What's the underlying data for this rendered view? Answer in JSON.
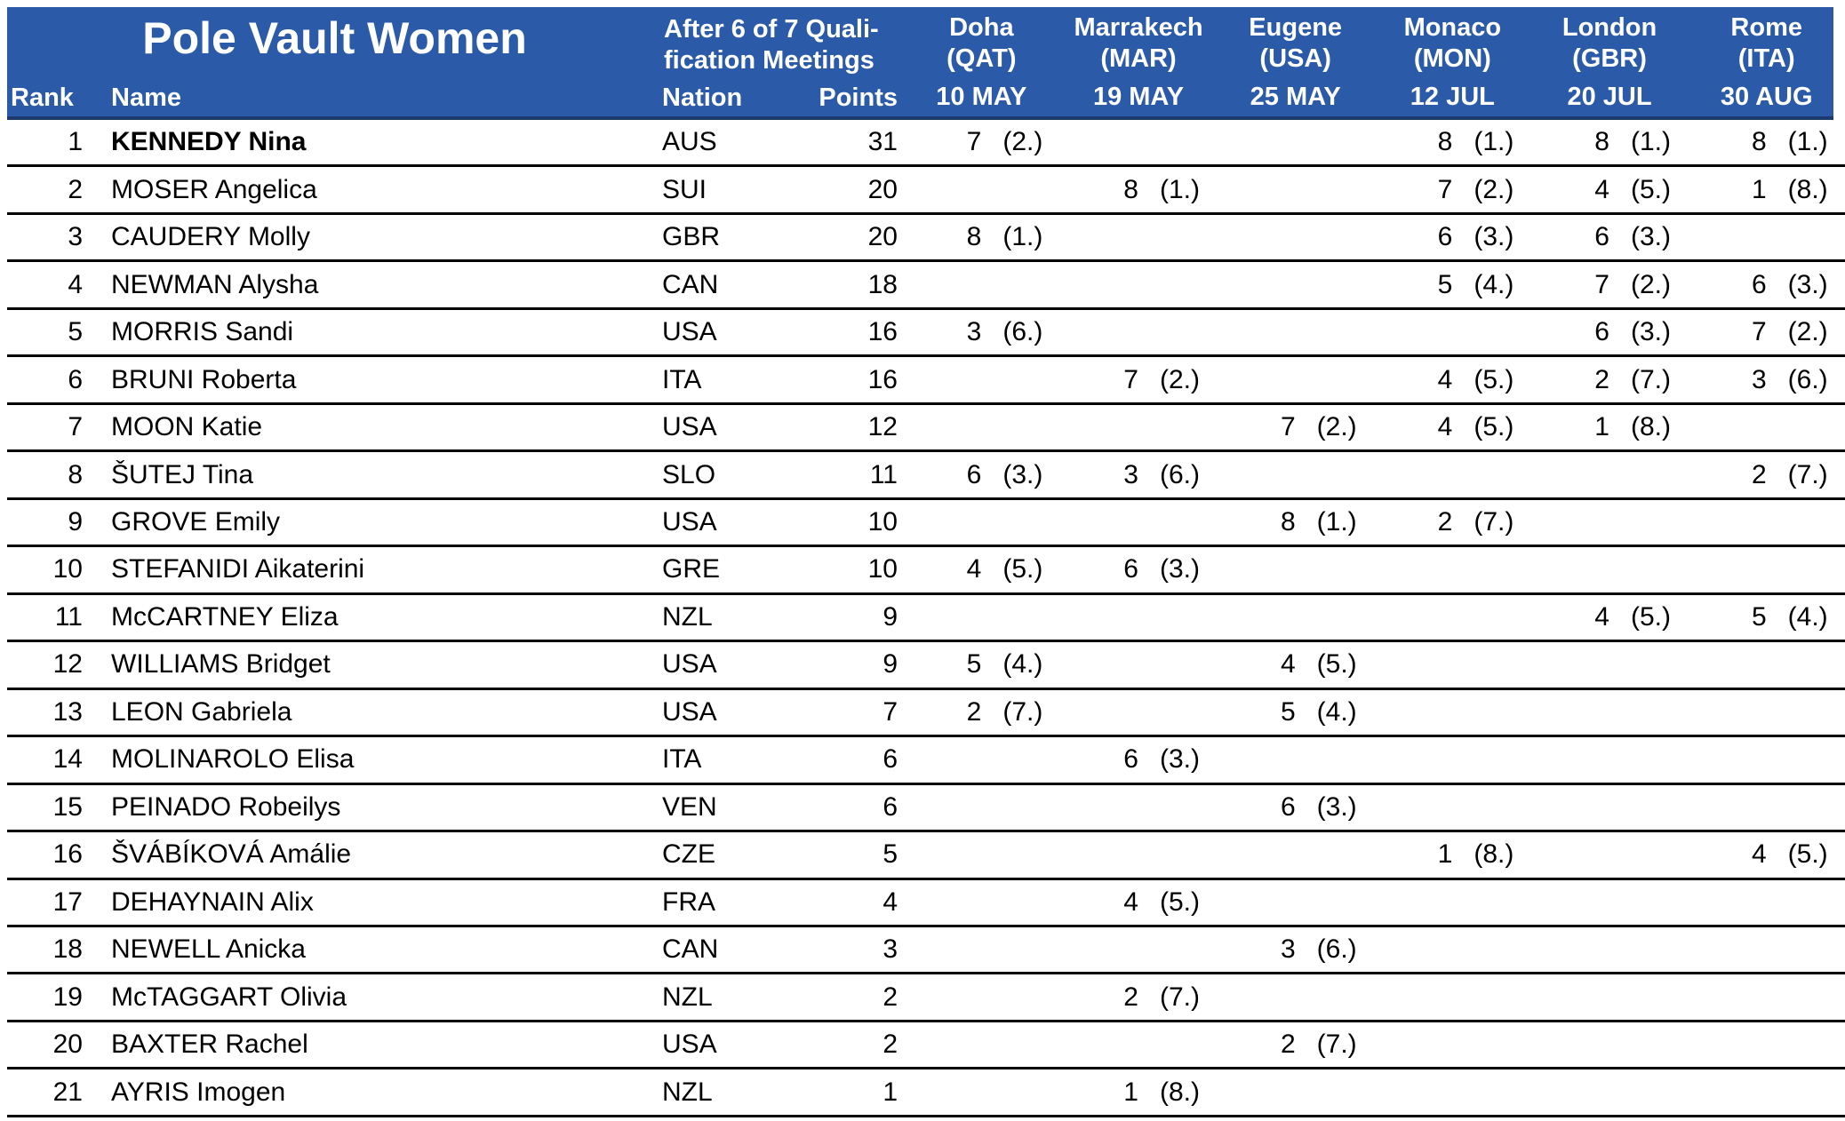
{
  "colors": {
    "header_bg": "#2B5AA8",
    "header_border": "#1C3A6E",
    "header_text": "#FFFFFF",
    "row_line": "#000000",
    "body_text": "#000000"
  },
  "header": {
    "title": "Pole Vault Women",
    "subtitle_line1": "After 6 of 7 Quali-",
    "subtitle_line2": "fication Meetings",
    "rank_label": "Rank",
    "name_label": "Name",
    "nation_label": "Nation",
    "points_label": "Points",
    "meetings": [
      {
        "city": "Doha",
        "country": "(QAT)",
        "date": "10 MAY"
      },
      {
        "city": "Marrakech",
        "country": "(MAR)",
        "date": "19 MAY"
      },
      {
        "city": "Eugene",
        "country": "(USA)",
        "date": "25 MAY"
      },
      {
        "city": "Monaco",
        "country": "(MON)",
        "date": "12 JUL"
      },
      {
        "city": "London",
        "country": "(GBR)",
        "date": "20 JUL"
      },
      {
        "city": "Rome",
        "country": "(ITA)",
        "date": "30 AUG"
      }
    ]
  },
  "rows": [
    {
      "rank": 1,
      "name": "KENNEDY Nina",
      "bold": true,
      "nation": "AUS",
      "points": 31,
      "results": [
        {
          "score": 7,
          "place": "(2.)"
        },
        null,
        null,
        {
          "score": 8,
          "place": "(1.)"
        },
        {
          "score": 8,
          "place": "(1.)"
        },
        {
          "score": 8,
          "place": "(1.)"
        }
      ]
    },
    {
      "rank": 2,
      "name": "MOSER Angelica",
      "bold": false,
      "nation": "SUI",
      "points": 20,
      "results": [
        null,
        {
          "score": 8,
          "place": "(1.)"
        },
        null,
        {
          "score": 7,
          "place": "(2.)"
        },
        {
          "score": 4,
          "place": "(5.)"
        },
        {
          "score": 1,
          "place": "(8.)"
        }
      ]
    },
    {
      "rank": 3,
      "name": "CAUDERY Molly",
      "bold": false,
      "nation": "GBR",
      "points": 20,
      "results": [
        {
          "score": 8,
          "place": "(1.)"
        },
        null,
        null,
        {
          "score": 6,
          "place": "(3.)"
        },
        {
          "score": 6,
          "place": "(3.)"
        },
        null
      ]
    },
    {
      "rank": 4,
      "name": "NEWMAN Alysha",
      "bold": false,
      "nation": "CAN",
      "points": 18,
      "results": [
        null,
        null,
        null,
        {
          "score": 5,
          "place": "(4.)"
        },
        {
          "score": 7,
          "place": "(2.)"
        },
        {
          "score": 6,
          "place": "(3.)"
        }
      ]
    },
    {
      "rank": 5,
      "name": "MORRIS Sandi",
      "bold": false,
      "nation": "USA",
      "points": 16,
      "results": [
        {
          "score": 3,
          "place": "(6.)"
        },
        null,
        null,
        null,
        {
          "score": 6,
          "place": "(3.)"
        },
        {
          "score": 7,
          "place": "(2.)"
        }
      ]
    },
    {
      "rank": 6,
      "name": "BRUNI Roberta",
      "bold": false,
      "nation": "ITA",
      "points": 16,
      "results": [
        null,
        {
          "score": 7,
          "place": "(2.)"
        },
        null,
        {
          "score": 4,
          "place": "(5.)"
        },
        {
          "score": 2,
          "place": "(7.)"
        },
        {
          "score": 3,
          "place": "(6.)"
        }
      ]
    },
    {
      "rank": 7,
      "name": "MOON Katie",
      "bold": false,
      "nation": "USA",
      "points": 12,
      "results": [
        null,
        null,
        {
          "score": 7,
          "place": "(2.)"
        },
        {
          "score": 4,
          "place": "(5.)"
        },
        {
          "score": 1,
          "place": "(8.)"
        },
        null
      ]
    },
    {
      "rank": 8,
      "name": "ŠUTEJ Tina",
      "bold": false,
      "nation": "SLO",
      "points": 11,
      "results": [
        {
          "score": 6,
          "place": "(3.)"
        },
        {
          "score": 3,
          "place": "(6.)"
        },
        null,
        null,
        null,
        {
          "score": 2,
          "place": "(7.)"
        }
      ]
    },
    {
      "rank": 9,
      "name": "GROVE Emily",
      "bold": false,
      "nation": "USA",
      "points": 10,
      "results": [
        null,
        null,
        {
          "score": 8,
          "place": "(1.)"
        },
        {
          "score": 2,
          "place": "(7.)"
        },
        null,
        null
      ]
    },
    {
      "rank": 10,
      "name": "STEFANIDI Aikaterini",
      "bold": false,
      "nation": "GRE",
      "points": 10,
      "results": [
        {
          "score": 4,
          "place": "(5.)"
        },
        {
          "score": 6,
          "place": "(3.)"
        },
        null,
        null,
        null,
        null
      ]
    },
    {
      "rank": 11,
      "name": "McCARTNEY Eliza",
      "bold": false,
      "nation": "NZL",
      "points": 9,
      "results": [
        null,
        null,
        null,
        null,
        {
          "score": 4,
          "place": "(5.)"
        },
        {
          "score": 5,
          "place": "(4.)"
        }
      ]
    },
    {
      "rank": 12,
      "name": "WILLIAMS Bridget",
      "bold": false,
      "nation": "USA",
      "points": 9,
      "results": [
        {
          "score": 5,
          "place": "(4.)"
        },
        null,
        {
          "score": 4,
          "place": "(5.)"
        },
        null,
        null,
        null
      ]
    },
    {
      "rank": 13,
      "name": "LEON Gabriela",
      "bold": false,
      "nation": "USA",
      "points": 7,
      "results": [
        {
          "score": 2,
          "place": "(7.)"
        },
        null,
        {
          "score": 5,
          "place": "(4.)"
        },
        null,
        null,
        null
      ]
    },
    {
      "rank": 14,
      "name": "MOLINAROLO Elisa",
      "bold": false,
      "nation": "ITA",
      "points": 6,
      "results": [
        null,
        {
          "score": 6,
          "place": "(3.)"
        },
        null,
        null,
        null,
        null
      ]
    },
    {
      "rank": 15,
      "name": "PEINADO Robeilys",
      "bold": false,
      "nation": "VEN",
      "points": 6,
      "results": [
        null,
        null,
        {
          "score": 6,
          "place": "(3.)"
        },
        null,
        null,
        null
      ]
    },
    {
      "rank": 16,
      "name": "ŠVÁBÍKOVÁ Amálie",
      "bold": false,
      "nation": "CZE",
      "points": 5,
      "results": [
        null,
        null,
        null,
        {
          "score": 1,
          "place": "(8.)"
        },
        null,
        {
          "score": 4,
          "place": "(5.)"
        }
      ]
    },
    {
      "rank": 17,
      "name": "DEHAYNAIN Alix",
      "bold": false,
      "nation": "FRA",
      "points": 4,
      "results": [
        null,
        {
          "score": 4,
          "place": "(5.)"
        },
        null,
        null,
        null,
        null
      ]
    },
    {
      "rank": 18,
      "name": "NEWELL Anicka",
      "bold": false,
      "nation": "CAN",
      "points": 3,
      "results": [
        null,
        null,
        {
          "score": 3,
          "place": "(6.)"
        },
        null,
        null,
        null
      ]
    },
    {
      "rank": 19,
      "name": "McTAGGART Olivia",
      "bold": false,
      "nation": "NZL",
      "points": 2,
      "results": [
        null,
        {
          "score": 2,
          "place": "(7.)"
        },
        null,
        null,
        null,
        null
      ]
    },
    {
      "rank": 20,
      "name": "BAXTER Rachel",
      "bold": false,
      "nation": "USA",
      "points": 2,
      "results": [
        null,
        null,
        {
          "score": 2,
          "place": "(7.)"
        },
        null,
        null,
        null
      ]
    },
    {
      "rank": 21,
      "name": "AYRIS Imogen",
      "bold": false,
      "nation": "NZL",
      "points": 1,
      "results": [
        null,
        {
          "score": 1,
          "place": "(8.)"
        },
        null,
        null,
        null,
        null
      ]
    }
  ]
}
